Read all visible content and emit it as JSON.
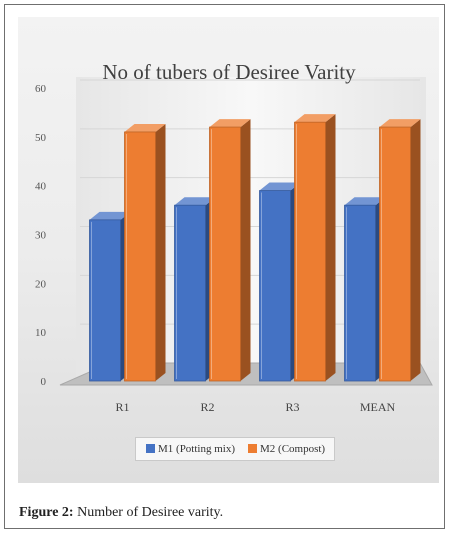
{
  "figure": {
    "label": "Figure 2:",
    "caption": " Number of Desiree varity."
  },
  "chart_data": {
    "type": "bar",
    "title": "No of tubers of Desiree Varity",
    "categories": [
      "R1",
      "R2",
      "R3",
      "MEAN"
    ],
    "series": [
      {
        "name": "M1 (Potting mix)",
        "color": "#4472c4",
        "values": [
          33,
          36,
          39,
          36
        ]
      },
      {
        "name": "M2 (Compost)",
        "color": "#ed7d31",
        "values": [
          51,
          52,
          53,
          52
        ]
      }
    ],
    "ylim": [
      0,
      60
    ],
    "yticks": [
      0,
      10,
      20,
      30,
      40,
      50,
      60
    ],
    "grid": true,
    "legend": "bottom",
    "style": "3d-bar"
  }
}
